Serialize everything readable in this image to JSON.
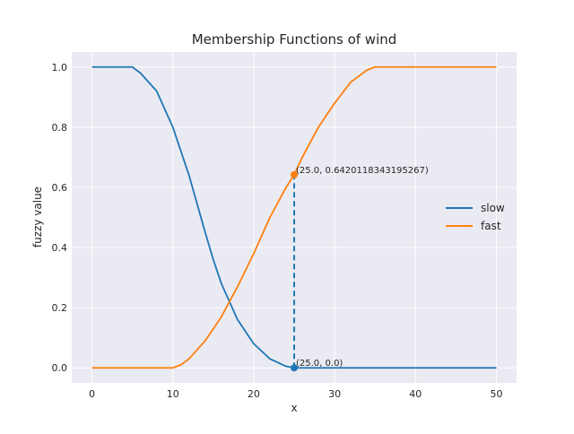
{
  "chart_data": {
    "type": "line",
    "title": "Membership Functions of wind",
    "xlabel": "x",
    "ylabel": "fuzzy value",
    "xlim": [
      -2.5,
      52.5
    ],
    "ylim": [
      -0.05,
      1.05
    ],
    "xticks": [
      0,
      10,
      20,
      30,
      40,
      50
    ],
    "yticks": [
      0.0,
      0.2,
      0.4,
      0.6,
      0.8,
      1.0
    ],
    "xtick_labels": [
      "0",
      "10",
      "20",
      "30",
      "40",
      "50"
    ],
    "ytick_labels": [
      "0.0",
      "0.2",
      "0.4",
      "0.6",
      "0.8",
      "1.0"
    ],
    "grid": true,
    "legend_position": "center-right",
    "series": [
      {
        "name": "slow",
        "color": "#1f77b4",
        "x": [
          0,
          2,
          4,
          5,
          6,
          8,
          10,
          12,
          14,
          15,
          16,
          18,
          20,
          22,
          24,
          25,
          26,
          30,
          35,
          40,
          45,
          50
        ],
        "y": [
          1.0,
          1.0,
          1.0,
          1.0,
          0.98,
          0.92,
          0.8,
          0.64,
          0.45,
          0.36,
          0.28,
          0.16,
          0.08,
          0.03,
          0.005,
          0.0,
          0.0,
          0.0,
          0.0,
          0.0,
          0.0,
          0.0
        ]
      },
      {
        "name": "fast",
        "color": "#ff7f0e",
        "x": [
          0,
          5,
          10,
          11,
          12,
          14,
          16,
          18,
          20,
          22,
          24,
          25,
          26,
          28,
          30,
          32,
          34,
          35,
          36,
          40,
          45,
          50
        ],
        "y": [
          0.0,
          0.0,
          0.0,
          0.01,
          0.03,
          0.09,
          0.17,
          0.27,
          0.38,
          0.5,
          0.6,
          0.642,
          0.7,
          0.8,
          0.88,
          0.95,
          0.99,
          1.0,
          1.0,
          1.0,
          1.0,
          1.0
        ]
      }
    ],
    "annotations": [
      {
        "text": "(25.0, 0.6420118343195267)",
        "x": 25.0,
        "y": 0.6420118343195267,
        "color": "#ff7f0e"
      },
      {
        "text": "(25.0, 0.0)",
        "x": 25.0,
        "y": 0.0,
        "color": "#1f77b4"
      }
    ],
    "marker_line": {
      "x": 25.0,
      "y_from": 0.0,
      "y_to": 0.6420118343195267,
      "style": "dashed",
      "color": "#1f77b4"
    }
  }
}
